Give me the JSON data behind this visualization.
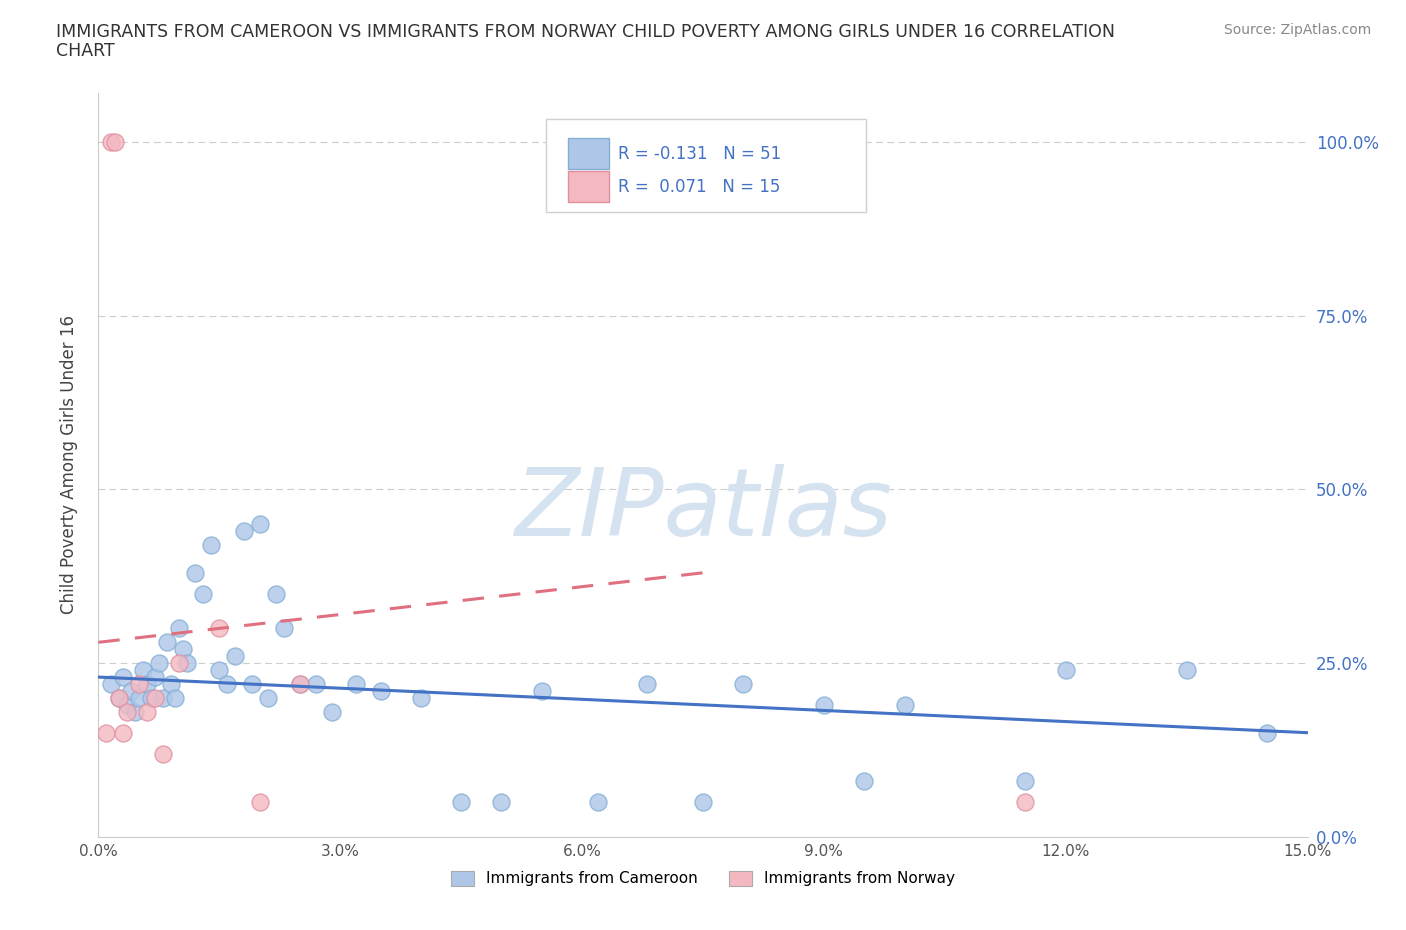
{
  "title_line1": "IMMIGRANTS FROM CAMEROON VS IMMIGRANTS FROM NORWAY CHILD POVERTY AMONG GIRLS UNDER 16 CORRELATION",
  "title_line2": "CHART",
  "source": "Source: ZipAtlas.com",
  "ylabel": "Child Poverty Among Girls Under 16",
  "xlim": [
    0.0,
    15.0
  ],
  "ylim": [
    0.0,
    107.0
  ],
  "yticks": [
    0,
    25,
    50,
    75,
    100
  ],
  "ytick_labels": [
    "0.0%",
    "25.0%",
    "50.0%",
    "75.0%",
    "100.0%"
  ],
  "xticks": [
    0,
    3,
    6,
    9,
    12,
    15
  ],
  "xtick_labels": [
    "0.0%",
    "3.0%",
    "6.0%",
    "9.0%",
    "12.0%",
    "15.0%"
  ],
  "legend_entries": [
    {
      "label": "Immigrants from Cameroon",
      "color": "#aec6e8"
    },
    {
      "label": "Immigrants from Norway",
      "color": "#f4b8c1"
    }
  ],
  "cameroon_color": "#aec6e8",
  "cameroon_edge": "#85afd4",
  "cameroon_line_color": "#4472c4",
  "norway_color": "#f4b8c1",
  "norway_edge": "#e090a0",
  "norway_line_color": "#e07080",
  "watermark_color": "#d5e3f0",
  "background": "#ffffff",
  "cameroon_x": [
    0.15,
    0.25,
    0.3,
    0.35,
    0.4,
    0.45,
    0.5,
    0.55,
    0.6,
    0.65,
    0.7,
    0.75,
    0.8,
    0.85,
    0.9,
    0.95,
    1.0,
    1.05,
    1.1,
    1.2,
    1.3,
    1.4,
    1.5,
    1.6,
    1.7,
    1.8,
    1.9,
    2.0,
    2.1,
    2.2,
    2.3,
    2.5,
    2.7,
    2.9,
    3.2,
    3.5,
    4.0,
    4.5,
    5.0,
    5.5,
    6.2,
    6.8,
    7.5,
    8.0,
    9.0,
    9.5,
    10.0,
    11.5,
    12.0,
    13.5,
    14.5
  ],
  "cameroon_y": [
    22,
    20,
    23,
    19,
    21,
    18,
    20,
    24,
    22,
    20,
    23,
    25,
    20,
    28,
    22,
    20,
    30,
    27,
    25,
    38,
    35,
    42,
    24,
    22,
    26,
    44,
    22,
    45,
    20,
    35,
    30,
    22,
    22,
    18,
    22,
    21,
    20,
    5,
    5,
    21,
    5,
    22,
    5,
    22,
    19,
    8,
    19,
    8,
    24,
    24,
    15
  ],
  "norway_x": [
    0.1,
    0.15,
    0.2,
    0.25,
    0.3,
    0.35,
    0.5,
    0.6,
    0.7,
    0.8,
    1.0,
    1.5,
    2.0,
    2.5,
    11.5
  ],
  "norway_y": [
    15,
    100,
    100,
    20,
    15,
    18,
    22,
    18,
    20,
    12,
    25,
    30,
    5,
    22,
    5
  ],
  "cameroon_trendline_x": [
    0.0,
    15.0
  ],
  "cameroon_trendline_y": [
    23.0,
    15.0
  ],
  "norway_trendline_x": [
    0.0,
    7.5
  ],
  "norway_trendline_y": [
    28.0,
    38.0
  ]
}
